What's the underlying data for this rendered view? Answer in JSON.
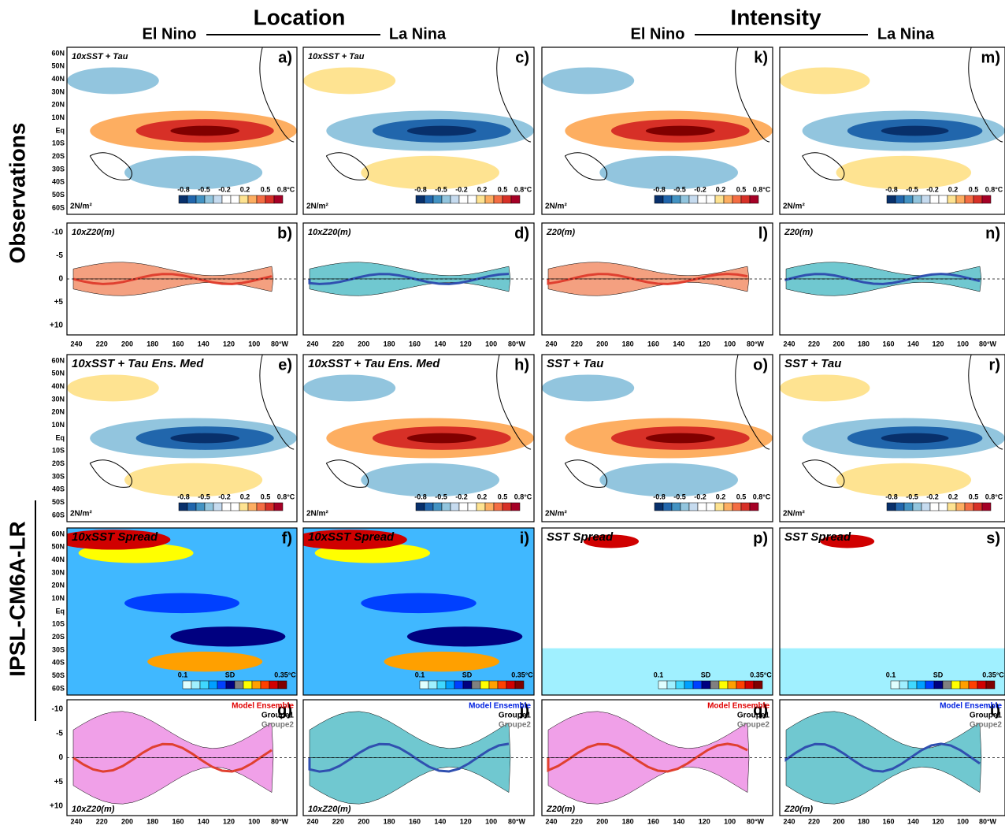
{
  "header": {
    "location": {
      "title": "Location",
      "left": "El Nino",
      "right": "La Nina"
    },
    "intensity": {
      "title": "Intensity",
      "left": "El Nino",
      "right": "La Nina"
    }
  },
  "row_labels": [
    "Observations",
    "IPSL-CM6A-LR"
  ],
  "lat_ticks": [
    "60N",
    "50N",
    "40N",
    "30N",
    "20N",
    "10N",
    "Eq",
    "10S",
    "20S",
    "30S",
    "40S",
    "50S",
    "60S"
  ],
  "lon_ticks": [
    "240",
    "220",
    "200",
    "180",
    "160",
    "140",
    "120",
    "100",
    "80°W"
  ],
  "depth_ticks": [
    "-10",
    "-5",
    "0",
    "+5",
    "+10"
  ],
  "colorbar_anomaly": [
    "-0.8",
    "-0.5",
    "-0.2",
    "0.2",
    "0.5",
    "0.8°C"
  ],
  "colorbar_spread": [
    "0.1",
    "SD",
    "0.35°C"
  ],
  "wind_scale": "2N/m²",
  "legend": [
    "Model Ensemble",
    "Groupe1",
    "Groupe2"
  ],
  "panels": [
    [
      {
        "letter": "a)",
        "label": "10xSST + Tau"
      },
      {
        "letter": "c)",
        "label": "10xSST + Tau"
      },
      {
        "letter": "k)"
      },
      {
        "letter": "m)"
      }
    ],
    [
      {
        "letter": "b)",
        "label": "10xZ20(m)"
      },
      {
        "letter": "d)",
        "label": "10xZ20(m)"
      },
      {
        "letter": "l)",
        "label": "Z20(m)"
      },
      {
        "letter": "n)",
        "label": "Z20(m)"
      }
    ],
    [
      {
        "letter": "e)",
        "label": "10xSST + Tau Ens. Med"
      },
      {
        "letter": "h)",
        "label": "10xSST + Tau Ens. Med"
      },
      {
        "letter": "o)",
        "label": "SST + Tau"
      },
      {
        "letter": "r)",
        "label": "SST + Tau"
      }
    ],
    [
      {
        "letter": "f)",
        "label": "10xSST Spread"
      },
      {
        "letter": "i)",
        "label": "10xSST Spread"
      },
      {
        "letter": "p)",
        "label": "SST Spread"
      },
      {
        "letter": "s)",
        "label": "SST Spread"
      }
    ],
    [
      {
        "letter": "g)",
        "label": "10xZ20(m)"
      },
      {
        "letter": "j)",
        "label": "10xZ20(m)"
      },
      {
        "letter": "q)",
        "label": "Z20(m)"
      },
      {
        "letter": "t)",
        "label": "Z20(m)"
      }
    ]
  ]
}
